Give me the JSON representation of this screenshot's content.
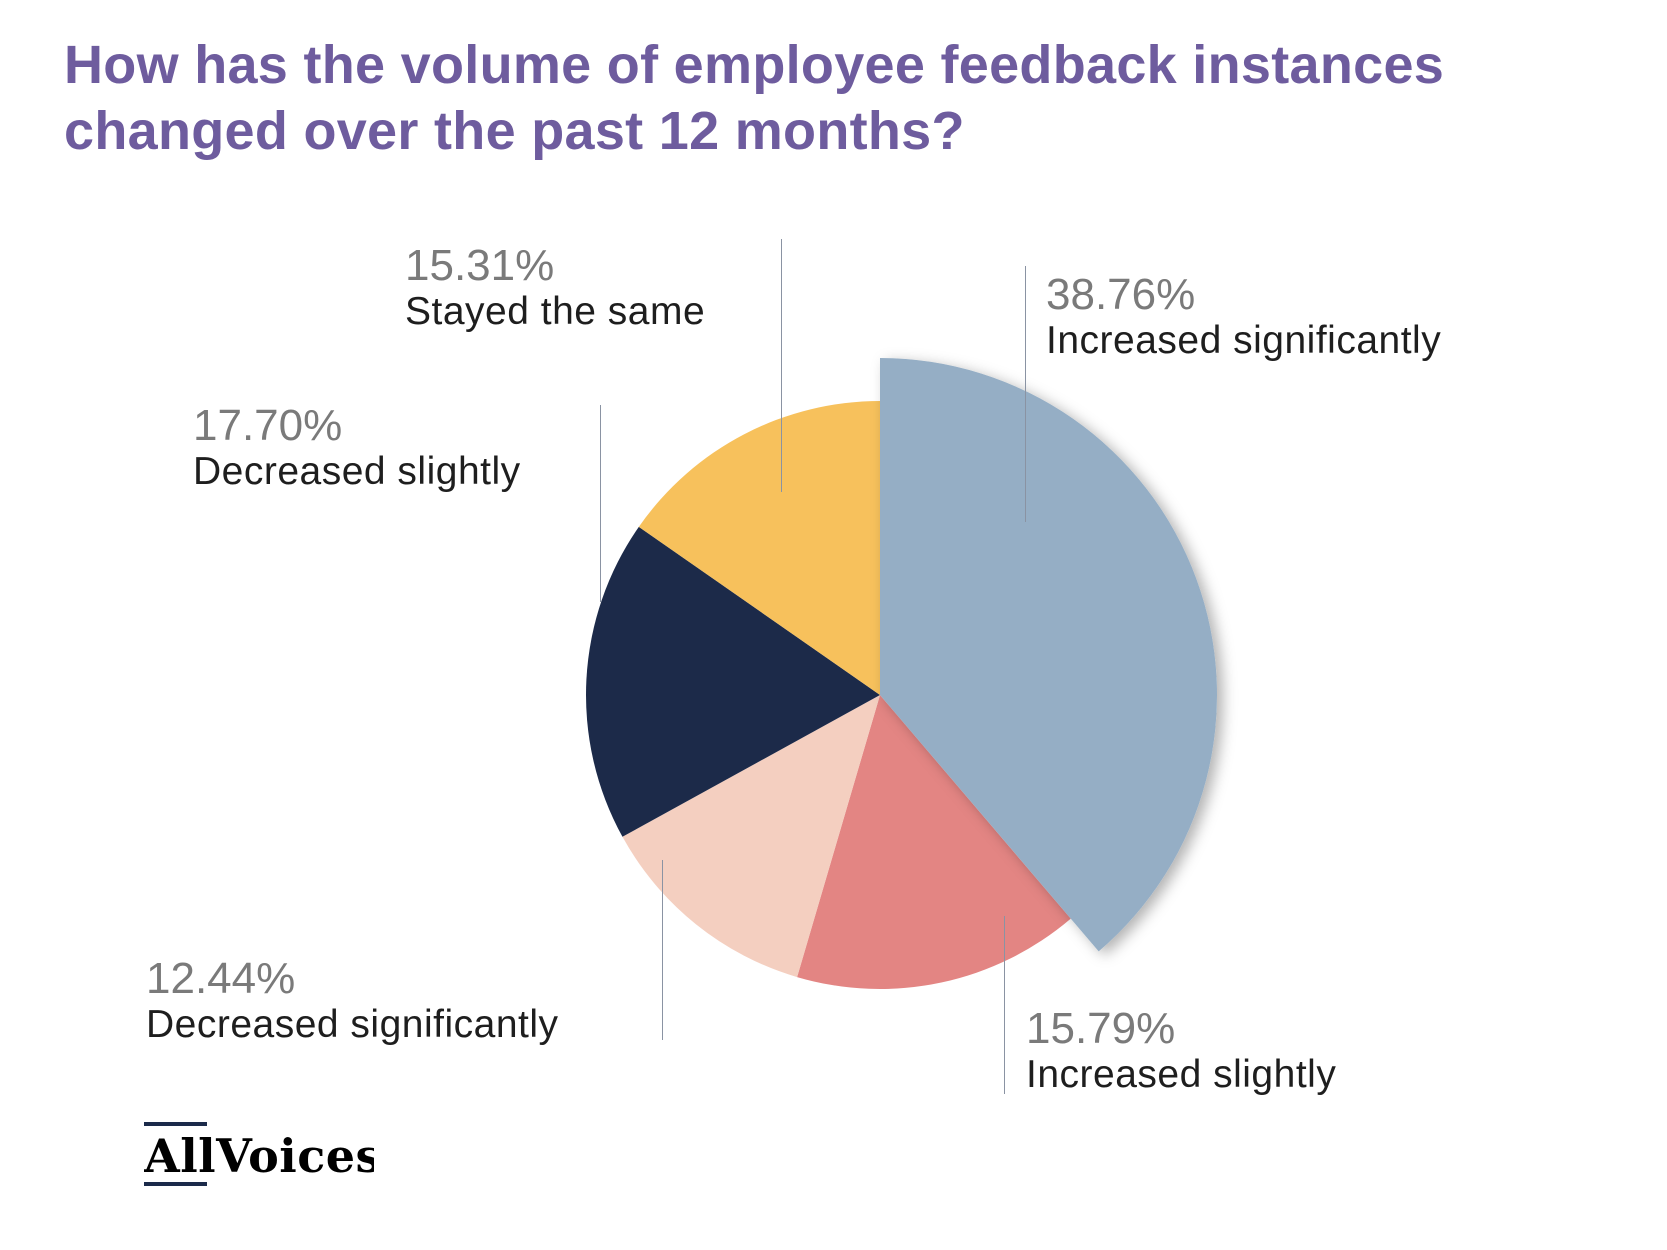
{
  "title": "How has the volume of employee feedback instances changed over the past 12 months?",
  "chart_data": {
    "type": "pie",
    "title": "How has the volume of employee feedback instances changed over the past 12 months?",
    "start": "top, clockwise",
    "exploded": "Increased significantly",
    "slices": [
      {
        "label": "Increased significantly",
        "value": 38.76,
        "pct_text": "38.76%",
        "color": "#95aec5"
      },
      {
        "label": "Increased slightly",
        "value": 15.79,
        "pct_text": "15.79%",
        "color": "#e38583"
      },
      {
        "label": "Decreased significantly",
        "value": 12.44,
        "pct_text": "12.44%",
        "color": "#f4cfc0"
      },
      {
        "label": "Decreased slightly",
        "value": 17.7,
        "pct_text": "17.70%",
        "color": "#1c2a49"
      },
      {
        "label": "Stayed the same",
        "value": 15.31,
        "pct_text": "15.31%",
        "color": "#f7c15c"
      }
    ]
  },
  "logo": {
    "text": "AllVoices",
    "part1": "All",
    "part2": "Voices",
    "color": "#1b2a4a"
  },
  "colors": {
    "title": "#6e5c9e",
    "percent": "#7a7a7a",
    "label": "#1e1e1e"
  }
}
